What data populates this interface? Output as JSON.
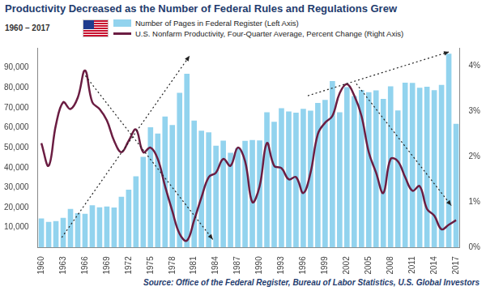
{
  "chart_data": {
    "type": "bar",
    "title": "Productivity Decreased as the Number of Federal Rules and Regulations Grew",
    "subtitle": "1960 – 2017",
    "source": "Source: Office of the Federal Register, Bureau of Labor Statistics, U.S. Global Investors",
    "categories": [
      "1960",
      null,
      null,
      "1963",
      null,
      null,
      "1966",
      null,
      null,
      "1969",
      null,
      null,
      "1972",
      null,
      null,
      "1975",
      null,
      null,
      "1978",
      null,
      null,
      "1981",
      null,
      null,
      "1984",
      null,
      null,
      "1987",
      null,
      null,
      "1990",
      null,
      null,
      "1993",
      null,
      null,
      "1996",
      null,
      null,
      "1999",
      null,
      null,
      "2002",
      null,
      null,
      "2005",
      null,
      null,
      "2008",
      null,
      null,
      "2011",
      null,
      null,
      "2014",
      null,
      null,
      "2017"
    ],
    "series": [
      {
        "name": "Number of Pages in Federal Register (Left Axis)",
        "type": "bar",
        "color": "#92d3ee",
        "values": [
          14500,
          12800,
          13200,
          14800,
          19300,
          17200,
          16900,
          21100,
          20100,
          20500,
          20000,
          25400,
          28900,
          35600,
          45400,
          60200,
          57100,
          65600,
          61300,
          77500,
          87000,
          63600,
          58500,
          57700,
          51000,
          53500,
          47400,
          49700,
          53400,
          53800,
          53600,
          67700,
          62900,
          69700,
          68100,
          67500,
          69400,
          68500,
          72400,
          73900,
          83300,
          67700,
          80300,
          75800,
          78900,
          77800,
          78700,
          74400,
          80700,
          68600,
          82500,
          82400,
          80000,
          80500,
          78800,
          81400,
          97100,
          61900
        ]
      },
      {
        "name": "U.S. Nonfarm Productivity, Four-Quarter Average, Percent Change (Right Axis)",
        "type": "line",
        "color": "#6b1d42",
        "axis": "y2",
        "values": [
          2.3,
          1.8,
          2.7,
          3.2,
          3.05,
          3.3,
          3.9,
          3.2,
          3.05,
          2.8,
          2.35,
          2.1,
          2.35,
          2.6,
          2.1,
          2.2,
          1.95,
          1.35,
          0.8,
          0.3,
          0.15,
          0.6,
          1.1,
          1.55,
          1.65,
          1.95,
          1.8,
          2.2,
          1.9,
          1.0,
          1.35,
          2.3,
          1.8,
          1.75,
          1.5,
          1.55,
          1.2,
          1.65,
          2.5,
          2.75,
          2.9,
          3.4,
          3.6,
          3.35,
          2.9,
          2.1,
          1.65,
          1.2,
          1.95,
          1.9,
          1.55,
          1.25,
          1.35,
          0.85,
          0.7,
          0.4,
          0.5,
          0.6
        ]
      }
    ],
    "ylim": [
      0,
      100000
    ],
    "yticks": [
      {
        "value": 10000,
        "label": "10,000"
      },
      {
        "value": 20000,
        "label": "20,000"
      },
      {
        "value": 30000,
        "label": "30,000"
      },
      {
        "value": 40000,
        "label": "40,000"
      },
      {
        "value": 50000,
        "label": "50,000"
      },
      {
        "value": 60000,
        "label": "60,000"
      },
      {
        "value": 70000,
        "label": "70,000"
      },
      {
        "value": 80000,
        "label": "80,000"
      },
      {
        "value": 90000,
        "label": "90,000"
      }
    ],
    "y2lim": [
      0,
      4.4
    ],
    "y2ticks": [
      {
        "value": 0,
        "label": "0%"
      },
      {
        "value": 1,
        "label": "1%"
      },
      {
        "value": 2,
        "label": "2%"
      },
      {
        "value": 3,
        "label": "3%"
      },
      {
        "value": 4,
        "label": "4%"
      }
    ],
    "grid": false,
    "legend": "top"
  }
}
